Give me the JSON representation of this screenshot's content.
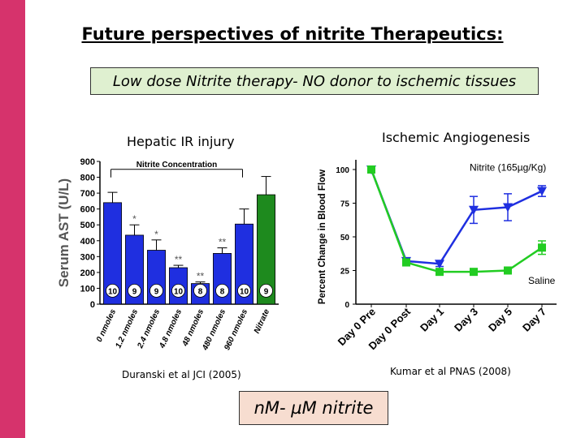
{
  "slide": {
    "title": "Future perspectives of nitrite Therapeutics:",
    "subtitle": "Low dose Nitrite therapy- NO donor to ischemic tissues",
    "left_panel_title": "Hepatic IR injury",
    "right_panel_title": "Ischemic Angiogenesis",
    "left_citation": "Duranski et al JCI (2005)",
    "right_citation": "Kumar et al PNAS (2008)",
    "note": "nM- µM nitrite",
    "accent_color": "#d6336c"
  },
  "chart_data": [
    {
      "type": "bar",
      "ylabel": "Serum AST (U/L)",
      "ylim": [
        0,
        900
      ],
      "yticks": [
        0,
        100,
        200,
        300,
        400,
        500,
        600,
        700,
        800,
        900
      ],
      "annotation": "Nitrite Concentration",
      "categories": [
        "0 nmoles",
        "1.2 nmoles",
        "2.4 nmoles",
        "4.8 nmoles",
        "48 nmoles",
        "480 nmoles",
        "960 nmoles",
        "Nitrate"
      ],
      "values": [
        640,
        435,
        340,
        230,
        130,
        320,
        505,
        690
      ],
      "errors": [
        65,
        65,
        65,
        15,
        10,
        35,
        95,
        115
      ],
      "n": [
        "10",
        "9",
        "9",
        "10",
        "8",
        "8",
        "10",
        "9"
      ],
      "significance": [
        "",
        "*",
        "*",
        "**",
        "**",
        "**",
        "",
        ""
      ],
      "colors": [
        "#1f2fe0",
        "#1f2fe0",
        "#1f2fe0",
        "#1f2fe0",
        "#1f2fe0",
        "#1f2fe0",
        "#1f2fe0",
        "#1e8a1e"
      ]
    },
    {
      "type": "line",
      "ylabel": "Percent Change in Blood Flow",
      "ylim": [
        0,
        100
      ],
      "yticks": [
        0,
        25,
        50,
        75,
        100
      ],
      "categories": [
        "Day 0 Pre",
        "Day 0 Post",
        "Day 1",
        "Day 3",
        "Day 5",
        "Day 7"
      ],
      "series": [
        {
          "name": "Nitrite (165µg/Kg)",
          "values": [
            100,
            32,
            30,
            70,
            72,
            84
          ],
          "errors": [
            2,
            2,
            2,
            10,
            10,
            4
          ],
          "color": "#1f2fe0",
          "marker": "triangle-down"
        },
        {
          "name": "Saline",
          "values": [
            100,
            31,
            24,
            24,
            25,
            42
          ],
          "errors": [
            2,
            2,
            2,
            2,
            2,
            5
          ],
          "color": "#22cc22",
          "marker": "square"
        }
      ]
    }
  ]
}
